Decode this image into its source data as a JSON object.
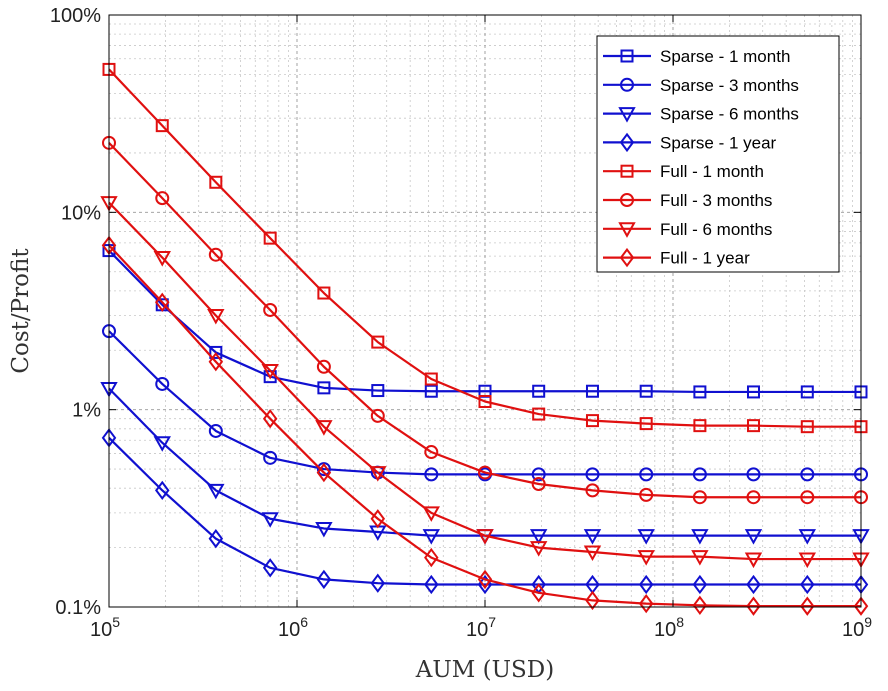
{
  "chart_data": {
    "type": "line",
    "xscale": "log",
    "yscale": "log",
    "xlabel": "AUM (USD)",
    "ylabel": "Cost/Profit",
    "xlim": [
      100000,
      1000000000
    ],
    "ylim": [
      0.001,
      1
    ],
    "x_ticks": [
      {
        "value": 100000,
        "base": "10",
        "exp": "5"
      },
      {
        "value": 1000000,
        "base": "10",
        "exp": "6"
      },
      {
        "value": 10000000,
        "base": "10",
        "exp": "7"
      },
      {
        "value": 100000000,
        "base": "10",
        "exp": "8"
      },
      {
        "value": 1000000000,
        "base": "10",
        "exp": "9"
      }
    ],
    "y_ticks": [
      {
        "value": 1,
        "label": "100%"
      },
      {
        "value": 0.1,
        "label": "10%"
      },
      {
        "value": 0.01,
        "label": "1%"
      },
      {
        "value": 0.001,
        "label": "0.1%"
      }
    ],
    "grid": true,
    "legend_position": "top-right",
    "x": [
      100000,
      192000,
      370000,
      720000,
      1390000,
      2690000,
      5180000,
      10000000,
      19300000,
      37300000,
      72000000,
      139000000,
      268000000,
      518000000,
      1000000000
    ],
    "series": [
      {
        "name": "Sparse - 1 month",
        "color": "#1010d0",
        "marker": "square",
        "values": [
          0.064,
          0.034,
          0.0195,
          0.0147,
          0.0129,
          0.0125,
          0.0124,
          0.0124,
          0.0124,
          0.0124,
          0.0124,
          0.0123,
          0.0123,
          0.0123,
          0.0123
        ]
      },
      {
        "name": "Sparse - 3 months",
        "color": "#1010d0",
        "marker": "circle",
        "values": [
          0.025,
          0.0135,
          0.0078,
          0.0057,
          0.005,
          0.0048,
          0.0047,
          0.0047,
          0.0047,
          0.0047,
          0.0047,
          0.0047,
          0.0047,
          0.0047,
          0.0047
        ]
      },
      {
        "name": "Sparse - 6 months",
        "color": "#1010d0",
        "marker": "triangle-down",
        "values": [
          0.0128,
          0.0068,
          0.0039,
          0.0028,
          0.0025,
          0.0024,
          0.0023,
          0.0023,
          0.0023,
          0.0023,
          0.0023,
          0.0023,
          0.0023,
          0.0023,
          0.0023
        ]
      },
      {
        "name": "Sparse - 1 year",
        "color": "#1010d0",
        "marker": "diamond",
        "values": [
          0.0072,
          0.0039,
          0.00222,
          0.00158,
          0.00138,
          0.00132,
          0.0013,
          0.0013,
          0.0013,
          0.0013,
          0.0013,
          0.0013,
          0.0013,
          0.0013,
          0.0013
        ]
      },
      {
        "name": "Full - 1 month",
        "color": "#e01010",
        "marker": "square",
        "values": [
          0.53,
          0.275,
          0.142,
          0.074,
          0.039,
          0.022,
          0.0143,
          0.011,
          0.0095,
          0.0088,
          0.0085,
          0.0083,
          0.0083,
          0.0082,
          0.0082
        ]
      },
      {
        "name": "Full - 3 months",
        "color": "#e01010",
        "marker": "circle",
        "values": [
          0.225,
          0.118,
          0.061,
          0.032,
          0.0165,
          0.0093,
          0.0061,
          0.0048,
          0.0042,
          0.0039,
          0.0037,
          0.0036,
          0.0036,
          0.0036,
          0.0036
        ]
      },
      {
        "name": "Full - 6 months",
        "color": "#e01010",
        "marker": "triangle-down",
        "values": [
          0.112,
          0.059,
          0.03,
          0.0158,
          0.0082,
          0.0048,
          0.003,
          0.0023,
          0.002,
          0.0019,
          0.0018,
          0.0018,
          0.00175,
          0.00175,
          0.00175
        ]
      },
      {
        "name": "Full - 1 year",
        "color": "#e01010",
        "marker": "diamond",
        "values": [
          0.068,
          0.035,
          0.0175,
          0.009,
          0.0048,
          0.0028,
          0.00178,
          0.00138,
          0.00118,
          0.00108,
          0.00104,
          0.00102,
          0.00101,
          0.00101,
          0.00101
        ]
      }
    ]
  }
}
